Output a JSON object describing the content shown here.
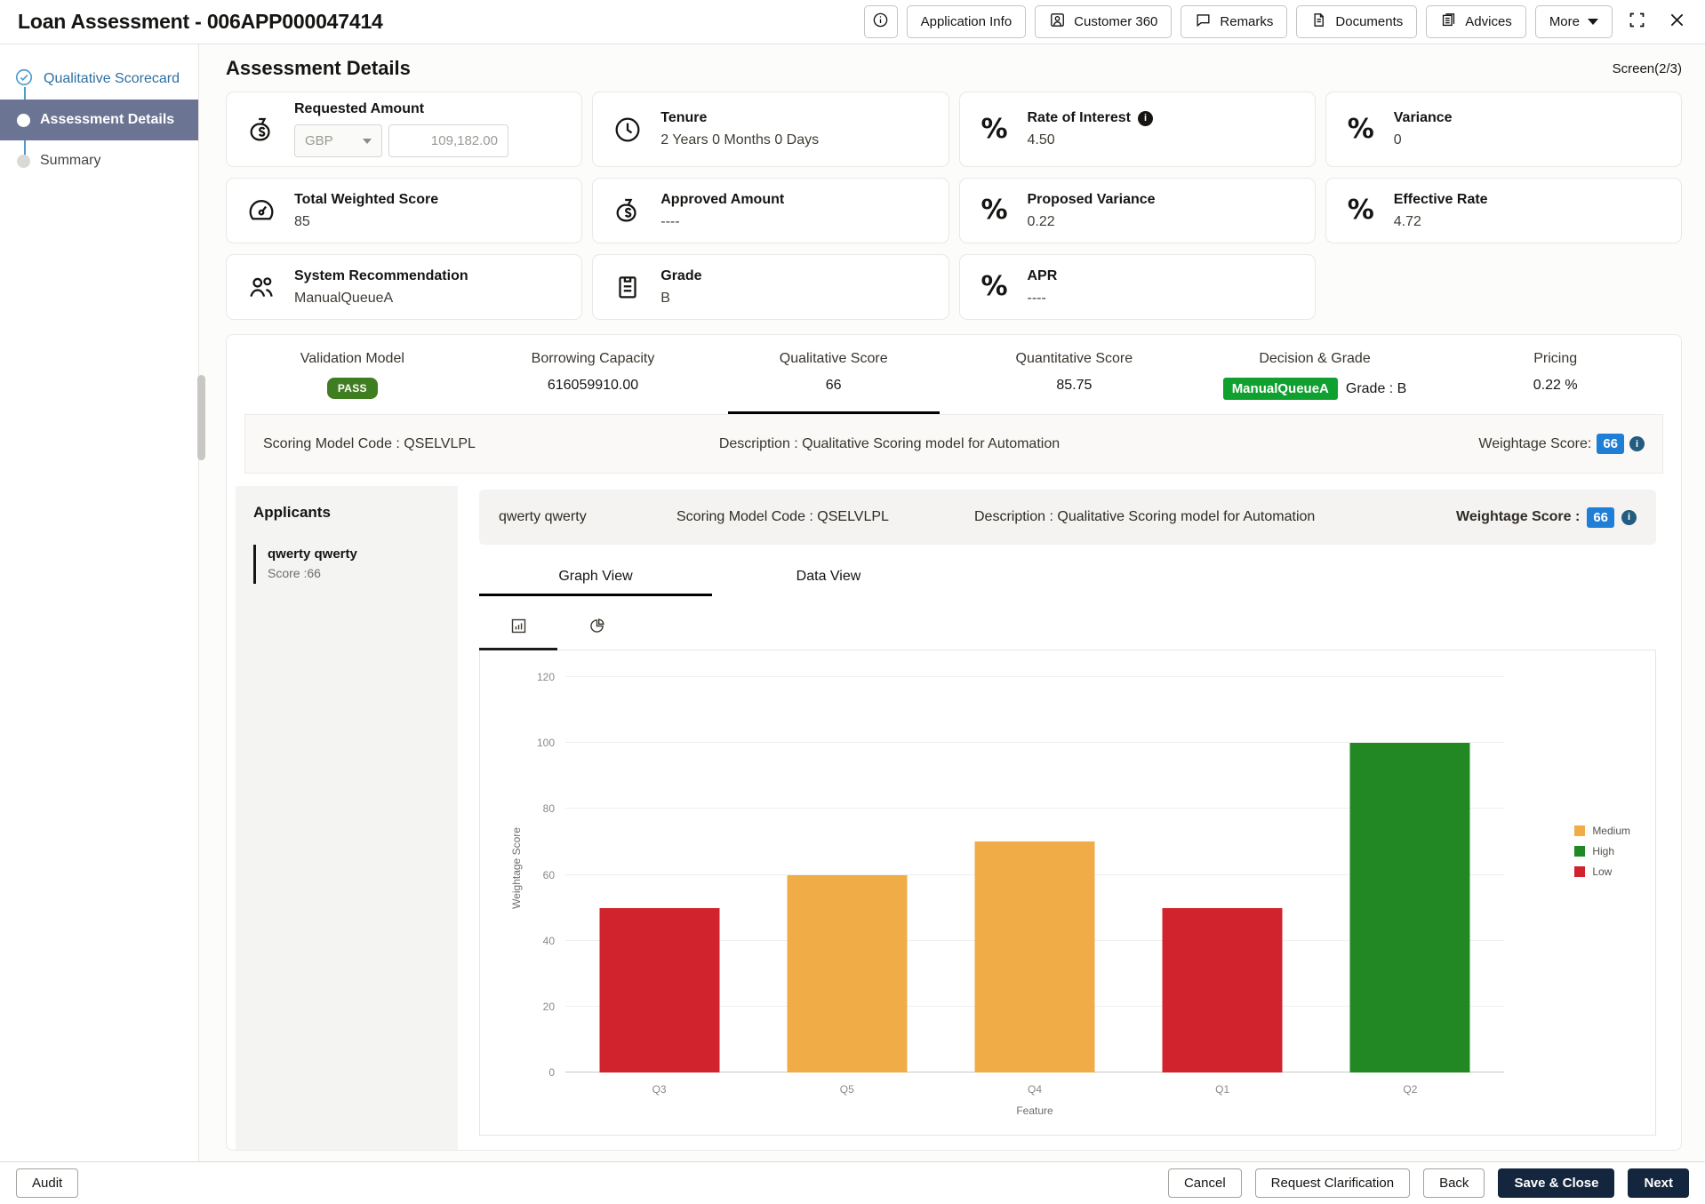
{
  "header": {
    "title": "Loan Assessment - 006APP000047414",
    "buttons": [
      "Application Info",
      "Customer 360",
      "Remarks",
      "Documents",
      "Advices"
    ],
    "more_label": "More"
  },
  "sidebar": {
    "items": [
      {
        "label": "Qualitative Scorecard",
        "state": "completed"
      },
      {
        "label": "Assessment Details",
        "state": "active"
      },
      {
        "label": "Summary",
        "state": "pending"
      }
    ]
  },
  "main": {
    "title": "Assessment Details",
    "screen_indicator": "Screen(2/3)",
    "cards": [
      {
        "label": "Requested Amount",
        "icon": "money-bag-icon",
        "currency": "GBP",
        "amount": "109,182.00"
      },
      {
        "label": "Tenure",
        "icon": "clock-icon",
        "value": "2 Years 0 Months 0 Days"
      },
      {
        "label": "Rate of Interest",
        "icon": "percent-icon",
        "value": "4.50",
        "has_info": true
      },
      {
        "label": "Variance",
        "icon": "percent-icon",
        "value": "0"
      },
      {
        "label": "Total Weighted Score",
        "icon": "gauge-icon",
        "value": "85"
      },
      {
        "label": "Approved Amount",
        "icon": "money-bag-icon",
        "value": "----"
      },
      {
        "label": "Proposed Variance",
        "icon": "percent-icon",
        "value": "0.22"
      },
      {
        "label": "Effective Rate",
        "icon": "percent-icon",
        "value": "4.72"
      },
      {
        "label": "System Recommendation",
        "icon": "people-icon",
        "value": "ManualQueueA"
      },
      {
        "label": "Grade",
        "icon": "clipboard-icon",
        "value": "B"
      },
      {
        "label": "APR",
        "icon": "percent-icon",
        "value": "----"
      }
    ],
    "summary_tabs": [
      {
        "label": "Validation Model",
        "badge": "PASS"
      },
      {
        "label": "Borrowing Capacity",
        "value": "616059910.00"
      },
      {
        "label": "Qualitative Score",
        "value": "66",
        "active": true
      },
      {
        "label": "Quantitative Score",
        "value": "85.75"
      },
      {
        "label": "Decision & Grade",
        "badge": "ManualQueueA",
        "value": "Grade : B"
      },
      {
        "label": "Pricing",
        "value": "0.22 %"
      }
    ],
    "scoring_bar": {
      "model_code": "Scoring Model Code : QSELVLPL",
      "description": "Description : Qualitative Scoring model for Automation",
      "weightage_label": "Weightage Score:",
      "weightage_value": "66"
    },
    "applicants": {
      "title": "Applicants",
      "items": [
        {
          "name": "qwerty qwerty",
          "score": "Score :66"
        }
      ]
    },
    "applicant_bar": {
      "name": "qwerty qwerty",
      "model_code": "Scoring Model Code : QSELVLPL",
      "description": "Description : Qualitative Scoring model for Automation",
      "weightage_label": "Weightage Score :",
      "weightage_value": "66"
    },
    "view_tabs": [
      {
        "label": "Graph View",
        "active": true
      },
      {
        "label": "Data View",
        "active": false
      }
    ]
  },
  "chart_data": {
    "type": "bar",
    "title": "",
    "categories": [
      "Q3",
      "Q5",
      "Q4",
      "Q1",
      "Q2"
    ],
    "values": [
      50,
      60,
      70,
      50,
      100
    ],
    "bar_levels": [
      "Low",
      "Medium",
      "Medium",
      "Low",
      "High"
    ],
    "level_colors": {
      "Medium": "#F0AC47",
      "High": "#218823",
      "Low": "#D0232D"
    },
    "legend": [
      "Medium",
      "High",
      "Low"
    ],
    "legend_position": "right",
    "xlabel": "Feature",
    "ylabel": "Weightage Score",
    "ylim": [
      0,
      120
    ],
    "yticks": [
      0,
      20,
      40,
      60,
      80,
      100,
      120
    ],
    "grid": true
  },
  "colors": {
    "sidebar_active_bg": "#6b7492",
    "sidebar_link_blue": "#2f6f9f",
    "pass_badge_green": "#3f7d21",
    "queue_badge_green": "#0fa02f",
    "weightage_badge_blue": "#1f7ed6",
    "primary_button": "#14253e",
    "bar_medium": "#F0AC47",
    "bar_high": "#218823",
    "bar_low": "#D0232D"
  },
  "footer": {
    "audit_label": "Audit",
    "actions": [
      "Cancel",
      "Request Clarification",
      "Back",
      "Save & Close",
      "Next"
    ]
  }
}
